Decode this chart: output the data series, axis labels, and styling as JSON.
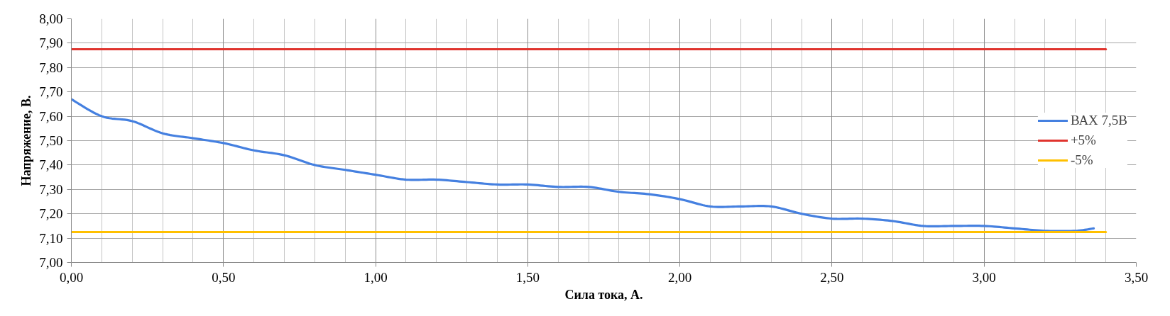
{
  "chart_data": {
    "type": "line",
    "xlabel": "Сила тока, А.",
    "ylabel": "Напряжение, В.",
    "xlim": [
      0,
      3.5
    ],
    "ylim": [
      7,
      8
    ],
    "xticks": [
      {
        "value": 0,
        "label": "0,00"
      },
      {
        "value": 0.1,
        "label": null
      },
      {
        "value": 0.2,
        "label": null
      },
      {
        "value": 0.3,
        "label": null
      },
      {
        "value": 0.4,
        "label": null
      },
      {
        "value": 0.5,
        "label": "0,50"
      },
      {
        "value": 0.6,
        "label": null
      },
      {
        "value": 0.7,
        "label": null
      },
      {
        "value": 0.8,
        "label": null
      },
      {
        "value": 0.9,
        "label": null
      },
      {
        "value": 1.0,
        "label": "1,00"
      },
      {
        "value": 1.1,
        "label": null
      },
      {
        "value": 1.2,
        "label": null
      },
      {
        "value": 1.3,
        "label": null
      },
      {
        "value": 1.4,
        "label": null
      },
      {
        "value": 1.5,
        "label": "1,50"
      },
      {
        "value": 1.6,
        "label": null
      },
      {
        "value": 1.7,
        "label": null
      },
      {
        "value": 1.8,
        "label": null
      },
      {
        "value": 1.9,
        "label": null
      },
      {
        "value": 2.0,
        "label": "2,00"
      },
      {
        "value": 2.1,
        "label": null
      },
      {
        "value": 2.2,
        "label": null
      },
      {
        "value": 2.3,
        "label": null
      },
      {
        "value": 2.4,
        "label": null
      },
      {
        "value": 2.5,
        "label": "2,50"
      },
      {
        "value": 2.6,
        "label": null
      },
      {
        "value": 2.7,
        "label": null
      },
      {
        "value": 2.8,
        "label": null
      },
      {
        "value": 2.9,
        "label": null
      },
      {
        "value": 3.0,
        "label": "3,00"
      },
      {
        "value": 3.1,
        "label": null
      },
      {
        "value": 3.2,
        "label": null
      },
      {
        "value": 3.3,
        "label": null
      },
      {
        "value": 3.4,
        "label": null
      },
      {
        "value": 3.5,
        "label": "3,50"
      }
    ],
    "yticks": [
      {
        "value": 7.0,
        "label": "7,00"
      },
      {
        "value": 7.1,
        "label": "7,10"
      },
      {
        "value": 7.2,
        "label": "7,20"
      },
      {
        "value": 7.3,
        "label": "7,30"
      },
      {
        "value": 7.4,
        "label": "7,40"
      },
      {
        "value": 7.5,
        "label": "7,50"
      },
      {
        "value": 7.6,
        "label": "7,60"
      },
      {
        "value": 7.7,
        "label": "7,70"
      },
      {
        "value": 7.8,
        "label": "7,80"
      },
      {
        "value": 7.9,
        "label": "7,90"
      },
      {
        "value": 8.0,
        "label": "8,00"
      }
    ],
    "grid": true,
    "legend": "right",
    "series": [
      {
        "name": "ВАХ 7,5В",
        "color": "#4580e0",
        "x": [
          0,
          0.1,
          0.2,
          0.3,
          0.4,
          0.5,
          0.6,
          0.7,
          0.8,
          0.9,
          1.0,
          1.1,
          1.2,
          1.3,
          1.4,
          1.5,
          1.6,
          1.7,
          1.8,
          1.9,
          2.0,
          2.1,
          2.2,
          2.3,
          2.4,
          2.5,
          2.6,
          2.7,
          2.8,
          2.9,
          3.0,
          3.1,
          3.2,
          3.3,
          3.36
        ],
        "values": [
          7.67,
          7.6,
          7.58,
          7.53,
          7.51,
          7.49,
          7.46,
          7.44,
          7.4,
          7.38,
          7.36,
          7.34,
          7.34,
          7.33,
          7.32,
          7.32,
          7.31,
          7.31,
          7.29,
          7.28,
          7.26,
          7.23,
          7.23,
          7.23,
          7.2,
          7.18,
          7.18,
          7.17,
          7.15,
          7.15,
          7.15,
          7.14,
          7.13,
          7.13,
          7.14
        ]
      },
      {
        "name": "+5%",
        "color": "#e0342e",
        "x": [
          0,
          3.4
        ],
        "values": [
          7.875,
          7.875
        ]
      },
      {
        "name": "-5%",
        "color": "#ffc000",
        "x": [
          0,
          3.4
        ],
        "values": [
          7.125,
          7.125
        ]
      }
    ]
  }
}
